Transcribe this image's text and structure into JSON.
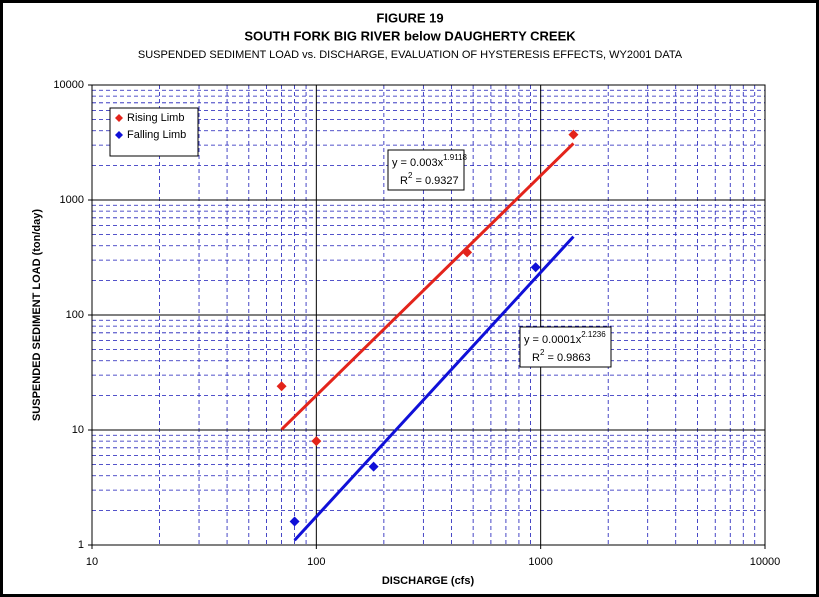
{
  "chart_data": {
    "type": "scatter",
    "title": "FIGURE 19",
    "subtitle": "SOUTH FORK BIG RIVER below DAUGHERTY CREEK",
    "description": "SUSPENDED SEDIMENT LOAD vs. DISCHARGE, EVALUATION OF HYSTERESIS EFFECTS, WY2001 DATA",
    "xlabel": "DISCHARGE (cfs)",
    "ylabel": "SUSPENDED SEDIMENT LOAD (ton/day)",
    "xscale": "log",
    "yscale": "log",
    "xlim": [
      10,
      10000
    ],
    "ylim": [
      1,
      10000
    ],
    "xticks": [
      10,
      100,
      1000,
      10000
    ],
    "yticks": [
      1,
      10,
      100,
      1000,
      10000
    ],
    "grid": true,
    "minor_grid": true,
    "legend": "upper left",
    "series": [
      {
        "name": "Rising Limb",
        "color": "#e3241b",
        "x": [
          70,
          100,
          470,
          1400
        ],
        "values": [
          24,
          8,
          350,
          3700
        ],
        "trendline": {
          "type": "power",
          "lhs": "y = ",
          "coefficient": 0.003,
          "variable": "x",
          "exponent": 1.9118,
          "r_label": "R",
          "r_power": "2",
          "r_sep": " = ",
          "r_squared": 0.9327
        }
      },
      {
        "name": "Falling Limb",
        "color": "#1010d8",
        "x": [
          80,
          180,
          950
        ],
        "values": [
          1.6,
          4.8,
          260
        ],
        "trendline": {
          "type": "power",
          "lhs": "y = ",
          "coefficient": 0.0001,
          "variable": "x",
          "exponent": 2.1236,
          "r_label": "R",
          "r_power": "2",
          "r_sep": " = ",
          "r_squared": 0.9863
        }
      }
    ]
  }
}
